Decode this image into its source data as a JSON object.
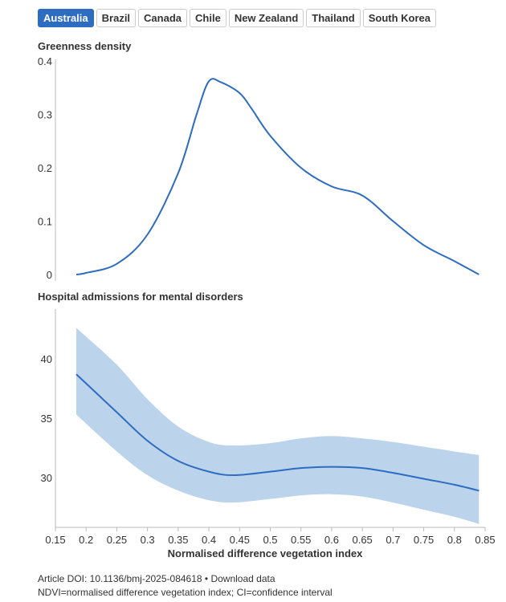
{
  "tabs": [
    "Australia",
    "Brazil",
    "Canada",
    "Chile",
    "New Zealand",
    "Thailand",
    "South Korea"
  ],
  "active_tab": 0,
  "colors": {
    "line": "#2d6cc0",
    "band": "#bcd3ec",
    "axis": "#bbbbbb"
  },
  "chart_data": [
    {
      "type": "line",
      "title": "Greenness density",
      "xlim": [
        0.15,
        0.85
      ],
      "ylim": [
        0,
        0.4
      ],
      "yticks": [
        "0",
        "0.1",
        "0.2",
        "0.3",
        "0.4"
      ],
      "ytick_values": [
        0,
        0.1,
        0.2,
        0.3,
        0.4
      ],
      "x": [
        0.184,
        0.2,
        0.25,
        0.3,
        0.35,
        0.38,
        0.4,
        0.42,
        0.45,
        0.47,
        0.5,
        0.55,
        0.6,
        0.65,
        0.7,
        0.75,
        0.8,
        0.84
      ],
      "y": [
        0,
        0.003,
        0.02,
        0.075,
        0.19,
        0.3,
        0.362,
        0.36,
        0.34,
        0.31,
        0.26,
        0.2,
        0.165,
        0.148,
        0.1,
        0.055,
        0.025,
        0
      ]
    },
    {
      "type": "line",
      "title": "Hospital admissions for mental disorders",
      "xlabel": "Normalised difference vegetation index",
      "xlim": [
        0.15,
        0.85
      ],
      "ylim": [
        25.8,
        43.9
      ],
      "yticks": [
        "30",
        "35",
        "40"
      ],
      "ytick_values": [
        30,
        35,
        40
      ],
      "xticks": [
        "0.15",
        "0.2",
        "0.25",
        "0.3",
        "0.35",
        "0.4",
        "0.45",
        "0.5",
        "0.55",
        "0.6",
        "0.65",
        "0.7",
        "0.75",
        "0.8",
        "0.85"
      ],
      "x": [
        0.184,
        0.25,
        0.3,
        0.35,
        0.4,
        0.44,
        0.5,
        0.55,
        0.6,
        0.65,
        0.7,
        0.75,
        0.8,
        0.84
      ],
      "y": [
        38.7,
        35.5,
        33.1,
        31.4,
        30.5,
        30.2,
        30.5,
        30.8,
        30.9,
        30.8,
        30.4,
        29.9,
        29.4,
        28.9
      ],
      "upper": [
        42.6,
        39.5,
        36.6,
        34.3,
        33.0,
        32.7,
        32.9,
        33.3,
        33.5,
        33.3,
        33.0,
        32.6,
        32.2,
        31.9
      ],
      "lower": [
        35.3,
        32.2,
        30.2,
        28.9,
        28.1,
        27.9,
        28.2,
        28.5,
        28.6,
        28.4,
        27.9,
        27.3,
        26.7,
        26.1
      ]
    }
  ],
  "footer": {
    "doi": "Article DOI: 10.1136/bmj-2025-084618",
    "sep": "•",
    "download": "Download data",
    "note": "NDVI=normalised difference vegetation index; CI=confidence interval"
  }
}
